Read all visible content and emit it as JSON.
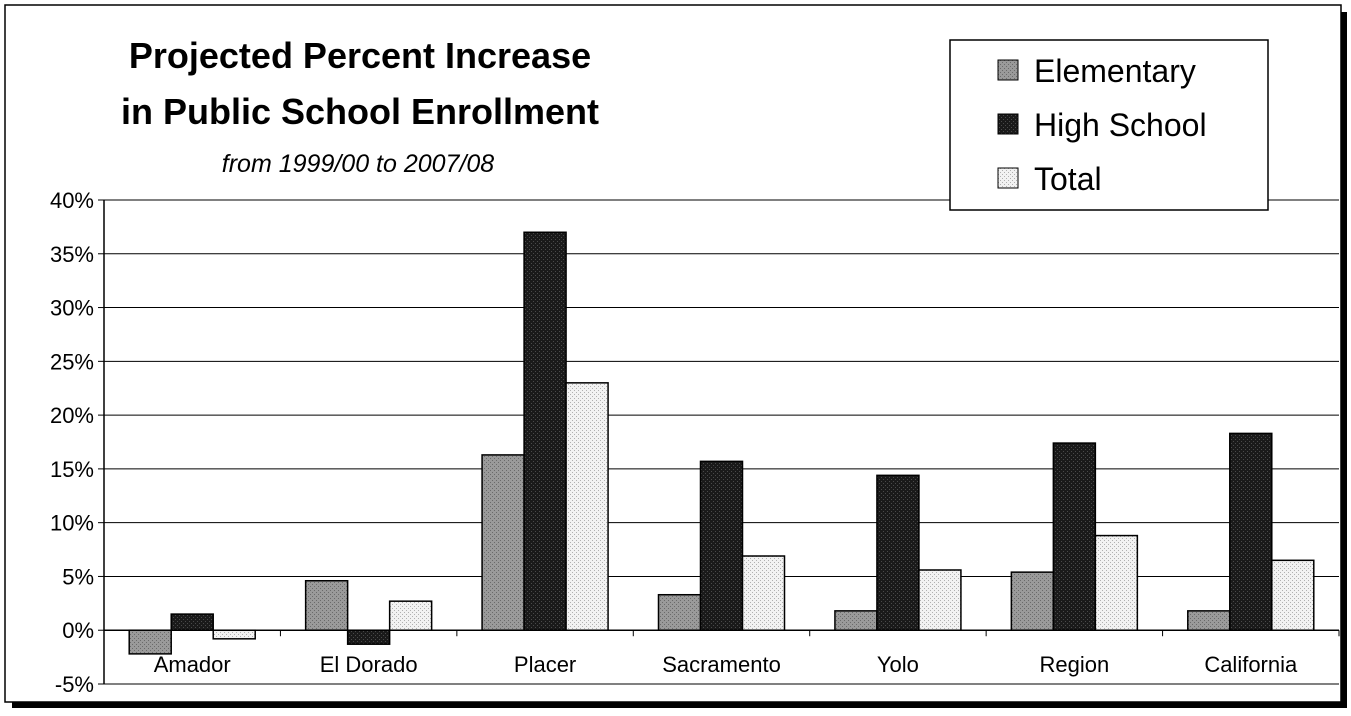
{
  "chart_data": {
    "type": "bar",
    "title_lines": [
      "Projected Percent Increase",
      "in Public School Enrollment"
    ],
    "subtitle": "from 1999/00 to 2007/08",
    "xlabel": "",
    "ylabel": "",
    "categories": [
      "Amador",
      "El Dorado",
      "Placer",
      "Sacramento",
      "Yolo",
      "Region",
      "California"
    ],
    "series": [
      {
        "name": "Elementary",
        "values": [
          -2.2,
          4.6,
          16.3,
          3.3,
          1.8,
          5.4,
          1.8
        ]
      },
      {
        "name": "High School",
        "values": [
          1.5,
          -1.3,
          37.0,
          15.7,
          14.4,
          17.4,
          18.3
        ]
      },
      {
        "name": "Total",
        "values": [
          -0.8,
          2.7,
          23.0,
          6.9,
          5.6,
          8.8,
          6.5
        ]
      }
    ],
    "ylim": [
      -5,
      40
    ],
    "yticks": [
      -5,
      0,
      5,
      10,
      15,
      20,
      25,
      30,
      35,
      40
    ],
    "ytick_labels": [
      "-5%",
      "0%",
      "5%",
      "10%",
      "15%",
      "20%",
      "25%",
      "30%",
      "35%",
      "40%"
    ],
    "grid": true,
    "legend_position": "top-right",
    "colors": {
      "Elementary": "#8c8c8c",
      "High School": "#161616",
      "Total": "#e8e8e8"
    }
  }
}
